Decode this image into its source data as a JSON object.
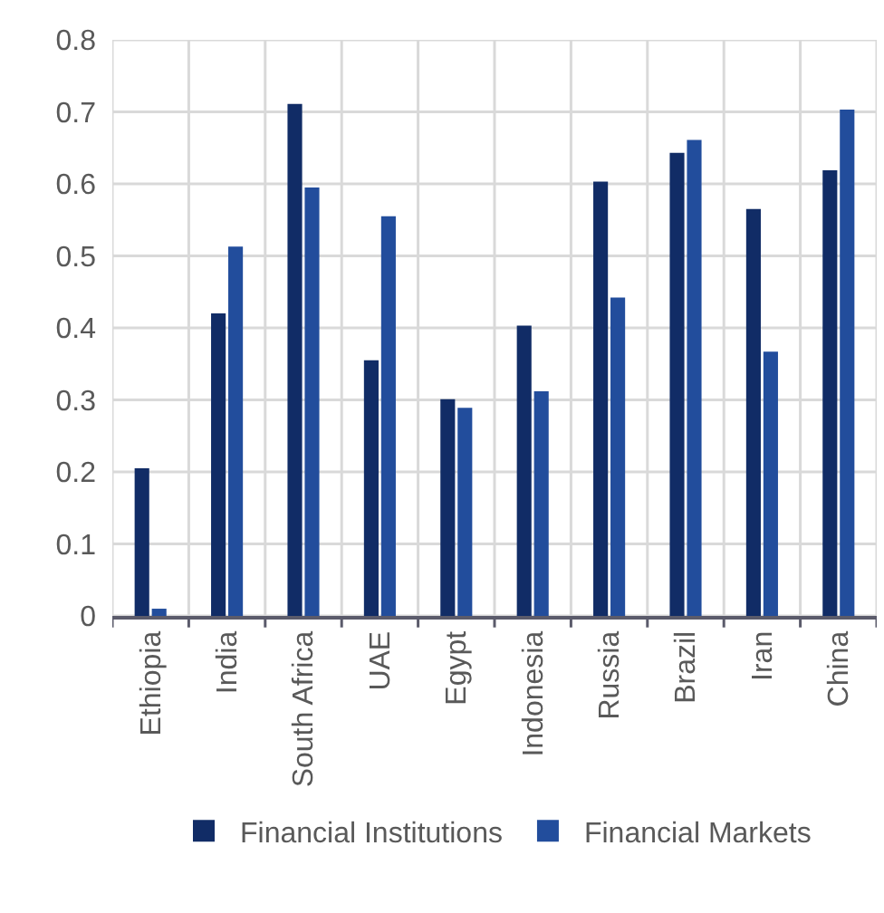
{
  "chart_data": {
    "type": "bar",
    "categories": [
      "Ethiopia",
      "India",
      "South Africa",
      "UAE",
      "Egypt",
      "Indonesia",
      "Russia",
      "Brazil",
      "Iran",
      "China"
    ],
    "series": [
      {
        "name": "Financial Institutions",
        "color": "#112c66",
        "values": [
          0.205,
          0.42,
          0.711,
          0.355,
          0.301,
          0.403,
          0.603,
          0.643,
          0.565,
          0.619
        ]
      },
      {
        "name": "Financial Markets",
        "color": "#224d9c",
        "values": [
          0.01,
          0.513,
          0.595,
          0.555,
          0.289,
          0.312,
          0.442,
          0.661,
          0.367,
          0.703
        ]
      }
    ],
    "ylim": [
      0,
      0.8
    ],
    "yticks": [
      0,
      0.1,
      0.2,
      0.3,
      0.4,
      0.5,
      0.6,
      0.7,
      0.8
    ],
    "grid": true,
    "legend": "bottom"
  }
}
